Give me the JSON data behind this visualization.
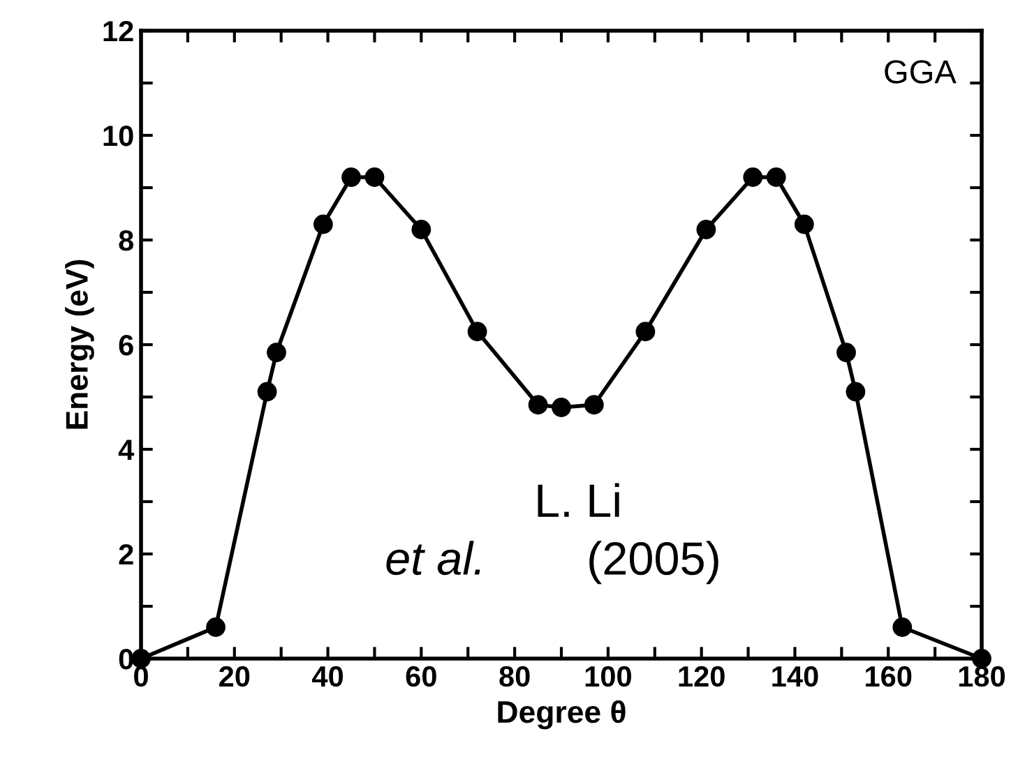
{
  "chart_data": {
    "type": "line",
    "xlabel": "Degree θ",
    "ylabel": "Energy (eV)",
    "annotations": [
      "GGA",
      "L. Li",
      "et al.",
      "(2005)"
    ],
    "x": [
      0,
      16,
      27,
      29,
      39,
      45,
      50,
      60,
      72,
      85,
      90,
      97,
      108,
      121,
      131,
      136,
      142,
      151,
      153,
      163,
      180
    ],
    "series": [
      {
        "color": "#000000",
        "values": [
          0,
          0.6,
          5.1,
          5.85,
          8.3,
          9.2,
          9.2,
          8.2,
          6.25,
          4.85,
          4.8,
          4.85,
          6.25,
          8.2,
          9.2,
          9.2,
          8.3,
          5.85,
          5.1,
          0.6,
          0
        ]
      }
    ],
    "marker": "circle",
    "line_style": "solid",
    "grid": false,
    "legend": false,
    "xlim": [
      0,
      180
    ],
    "xticks": [
      0,
      {
        "value": 10,
        "label": null
      },
      20,
      {
        "value": 30,
        "label": null
      },
      40,
      {
        "value": 50,
        "label": null
      },
      60,
      {
        "value": 70,
        "label": null
      },
      80,
      {
        "value": 90,
        "label": null
      },
      100,
      {
        "value": 110,
        "label": null
      },
      120,
      {
        "value": 130,
        "label": null
      },
      140,
      {
        "value": 150,
        "label": null
      },
      160,
      {
        "value": 170,
        "label": null
      },
      180
    ],
    "ylim": [
      0,
      12
    ],
    "yticks": [
      0,
      {
        "value": 1,
        "label": null
      },
      2,
      {
        "value": 3,
        "label": null
      },
      4,
      {
        "value": 5,
        "label": null
      },
      6,
      {
        "value": 7,
        "label": null
      },
      8,
      {
        "value": 9,
        "label": null
      },
      10,
      {
        "value": 11,
        "label": null
      },
      12
    ]
  }
}
